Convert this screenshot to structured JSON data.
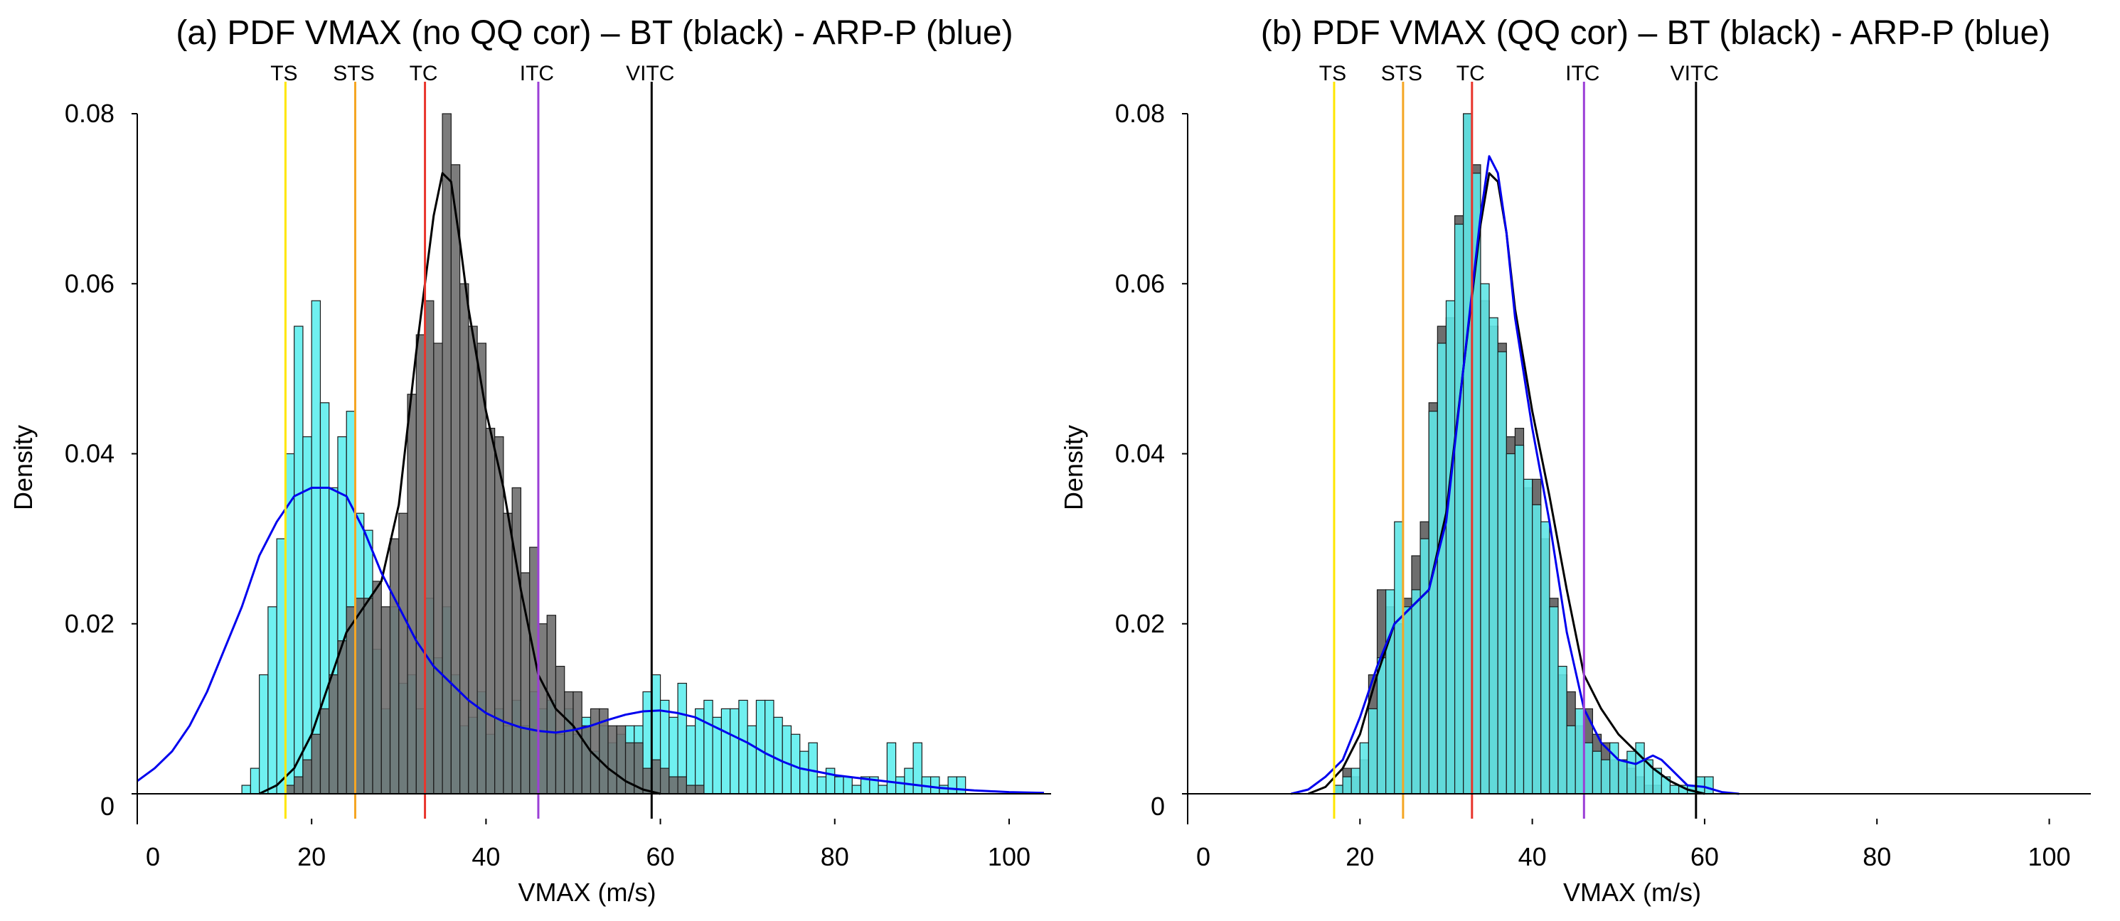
{
  "chart_data": [
    {
      "type": "bar",
      "title": "(a) PDF VMAX (no QQ cor) – BT (black) - ARP-P (blue)",
      "xlabel": "VMAX (m/s)",
      "ylabel": "Density",
      "xlim": [
        0,
        104
      ],
      "ylim": [
        0,
        0.08
      ],
      "xticks": [
        0,
        20,
        40,
        60,
        80,
        100
      ],
      "xtick_labels": [
        "0",
        "20",
        "40",
        "60",
        "80",
        "100"
      ],
      "yticks": [
        0,
        0.02,
        0.04,
        0.06,
        0.08
      ],
      "ytick_labels": [
        "0",
        "0.02",
        "0.04",
        "0.06",
        "0.08"
      ],
      "bin_width": 1,
      "histograms": [
        {
          "name": "ARP-P",
          "color": "#6ff0f0",
          "x_start": 12,
          "values": [
            0.001,
            0.003,
            0.014,
            0.022,
            0.03,
            0.04,
            0.055,
            0.042,
            0.058,
            0.046,
            0.036,
            0.042,
            0.045,
            0.033,
            0.031,
            0.017,
            0.01,
            0.022,
            0.013,
            0.014,
            0.01,
            0.023,
            0.016,
            0.022,
            0.014,
            0.008,
            0.009,
            0.012,
            0.007,
            0.01,
            0.008,
            0.011,
            0.008,
            0.012,
            0.01,
            0.011,
            0.007,
            0.01,
            0.007,
            0.009,
            0.005,
            0.008,
            0.006,
            0.007,
            0.008,
            0.008,
            0.012,
            0.014,
            0.011,
            0.009,
            0.013,
            0.008,
            0.01,
            0.011,
            0.009,
            0.01,
            0.01,
            0.011,
            0.008,
            0.011,
            0.011,
            0.009,
            0.008,
            0.007,
            0.005,
            0.006,
            0.002,
            0.003,
            0.002,
            0.002,
            0.001,
            0.002,
            0.002,
            0.001,
            0.006,
            0.002,
            0.003,
            0.006,
            0.002,
            0.002,
            0.001,
            0.002,
            0.002
          ]
        },
        {
          "name": "BT",
          "color": "#6e6e6e",
          "x_start": 17,
          "values": [
            0.001,
            0.002,
            0.004,
            0.007,
            0.01,
            0.014,
            0.018,
            0.022,
            0.023,
            0.023,
            0.025,
            0.022,
            0.03,
            0.033,
            0.047,
            0.054,
            0.058,
            0.053,
            0.08,
            0.074,
            0.06,
            0.055,
            0.053,
            0.043,
            0.042,
            0.033,
            0.036,
            0.026,
            0.029,
            0.02,
            0.021,
            0.015,
            0.012,
            0.012,
            0.008,
            0.01,
            0.01,
            0.008,
            0.008,
            0.006,
            0.006,
            0.003,
            0.004,
            0.003,
            0.002,
            0.002,
            0.001,
            0.001
          ]
        }
      ],
      "series": [
        {
          "name": "BT density",
          "color": "#000000",
          "x": [
            14,
            16,
            18,
            20,
            22,
            24,
            26,
            28,
            30,
            32,
            34,
            35,
            36,
            37,
            38,
            40,
            42,
            44,
            46,
            48,
            50,
            52,
            54,
            56,
            58,
            60
          ],
          "values": [
            0.0,
            0.001,
            0.003,
            0.007,
            0.013,
            0.019,
            0.022,
            0.025,
            0.034,
            0.052,
            0.068,
            0.073,
            0.072,
            0.065,
            0.057,
            0.045,
            0.036,
            0.024,
            0.014,
            0.01,
            0.008,
            0.005,
            0.003,
            0.0015,
            0.0005,
            0.0
          ]
        },
        {
          "name": "ARP-P density",
          "color": "#0000ee",
          "x": [
            0,
            2,
            4,
            6,
            8,
            10,
            12,
            14,
            16,
            18,
            20,
            22,
            24,
            26,
            28,
            30,
            32,
            34,
            36,
            38,
            40,
            42,
            44,
            46,
            48,
            50,
            52,
            54,
            56,
            58,
            60,
            62,
            64,
            66,
            68,
            70,
            72,
            74,
            76,
            78,
            80,
            84,
            88,
            92,
            96,
            100,
            104
          ],
          "values": [
            0.0015,
            0.003,
            0.005,
            0.008,
            0.012,
            0.017,
            0.022,
            0.028,
            0.032,
            0.035,
            0.036,
            0.036,
            0.035,
            0.031,
            0.026,
            0.022,
            0.018,
            0.015,
            0.013,
            0.011,
            0.0095,
            0.0085,
            0.0078,
            0.0074,
            0.0072,
            0.0075,
            0.008,
            0.0087,
            0.0093,
            0.0097,
            0.0098,
            0.0095,
            0.009,
            0.008,
            0.007,
            0.006,
            0.0048,
            0.0038,
            0.003,
            0.0026,
            0.0022,
            0.0017,
            0.0012,
            0.0007,
            0.0004,
            0.0002,
            0.0001
          ]
        }
      ],
      "vlines": [
        {
          "label": "TS",
          "x": 17,
          "color": "#ffe600"
        },
        {
          "label": "STS",
          "x": 25,
          "color": "#f5a623"
        },
        {
          "label": "TC",
          "x": 33,
          "color": "#e8352c"
        },
        {
          "label": "ITC",
          "x": 46,
          "color": "#9b3fd6"
        },
        {
          "label": "VITC",
          "x": 59,
          "color": "#000000"
        }
      ]
    },
    {
      "type": "bar",
      "title": "(b) PDF VMAX (QQ cor) – BT (black) - ARP-P (blue)",
      "xlabel": "VMAX (m/s)",
      "ylabel": "Density",
      "xlim": [
        0,
        104
      ],
      "ylim": [
        0,
        0.08
      ],
      "xticks": [
        0,
        20,
        40,
        60,
        80,
        100
      ],
      "xtick_labels": [
        "0",
        "20",
        "40",
        "60",
        "80",
        "100"
      ],
      "yticks": [
        0,
        0.02,
        0.04,
        0.06,
        0.08
      ],
      "ytick_labels": [
        "0",
        "0.02",
        "0.04",
        "0.06",
        "0.08"
      ],
      "bin_width": 1,
      "histograms": [
        {
          "name": "BT",
          "color": "#6e6e6e",
          "x_start": 17,
          "values": [
            0.001,
            0.003,
            0.002,
            0.004,
            0.014,
            0.024,
            0.022,
            0.02,
            0.023,
            0.028,
            0.032,
            0.046,
            0.055,
            0.056,
            0.068,
            0.08,
            0.074,
            0.058,
            0.055,
            0.053,
            0.042,
            0.043,
            0.036,
            0.037,
            0.03,
            0.023,
            0.014,
            0.012,
            0.008,
            0.01,
            0.007,
            0.006,
            0.004,
            0.004,
            0.003,
            0.002,
            0.001,
            0.001
          ]
        },
        {
          "name": "ARP-P",
          "color": "#5fe6e6",
          "x_start": 17,
          "values": [
            0.001,
            0.002,
            0.003,
            0.006,
            0.01,
            0.016,
            0.024,
            0.032,
            0.022,
            0.024,
            0.03,
            0.045,
            0.053,
            0.058,
            0.067,
            0.08,
            0.073,
            0.06,
            0.056,
            0.052,
            0.04,
            0.041,
            0.037,
            0.034,
            0.032,
            0.022,
            0.015,
            0.008,
            0.01,
            0.006,
            0.005,
            0.004,
            0.006,
            0.004,
            0.005,
            0.006,
            0.004,
            0.003,
            0.002,
            0.001,
            0.001,
            0.001,
            0.002,
            0.002
          ]
        }
      ],
      "series": [
        {
          "name": "BT density",
          "color": "#000000",
          "x": [
            14,
            16,
            18,
            20,
            22,
            24,
            26,
            28,
            30,
            32,
            34,
            35,
            36,
            37,
            38,
            40,
            42,
            44,
            46,
            48,
            50,
            52,
            54,
            56,
            58,
            60
          ],
          "values": [
            0.0,
            0.0008,
            0.003,
            0.007,
            0.014,
            0.02,
            0.022,
            0.024,
            0.033,
            0.05,
            0.067,
            0.073,
            0.072,
            0.066,
            0.057,
            0.045,
            0.035,
            0.024,
            0.014,
            0.01,
            0.007,
            0.005,
            0.003,
            0.0015,
            0.0005,
            0.0
          ]
        },
        {
          "name": "ARP-P density",
          "color": "#0000ee",
          "x": [
            12,
            14,
            16,
            18,
            20,
            22,
            24,
            26,
            28,
            30,
            32,
            34,
            35,
            36,
            37,
            38,
            40,
            42,
            44,
            46,
            48,
            50,
            52,
            54,
            55,
            56,
            58,
            60,
            62,
            64
          ],
          "values": [
            0.0,
            0.0005,
            0.002,
            0.004,
            0.009,
            0.015,
            0.02,
            0.022,
            0.024,
            0.032,
            0.05,
            0.068,
            0.075,
            0.073,
            0.066,
            0.056,
            0.043,
            0.032,
            0.019,
            0.01,
            0.006,
            0.004,
            0.0035,
            0.0045,
            0.004,
            0.003,
            0.001,
            0.0008,
            0.0002,
            0.0
          ]
        }
      ],
      "vlines": [
        {
          "label": "TS",
          "x": 17,
          "color": "#ffe600"
        },
        {
          "label": "STS",
          "x": 25,
          "color": "#f5a623"
        },
        {
          "label": "TC",
          "x": 33,
          "color": "#e8352c"
        },
        {
          "label": "ITC",
          "x": 46,
          "color": "#9b3fd6"
        },
        {
          "label": "VITC",
          "x": 59,
          "color": "#000000"
        }
      ]
    }
  ]
}
